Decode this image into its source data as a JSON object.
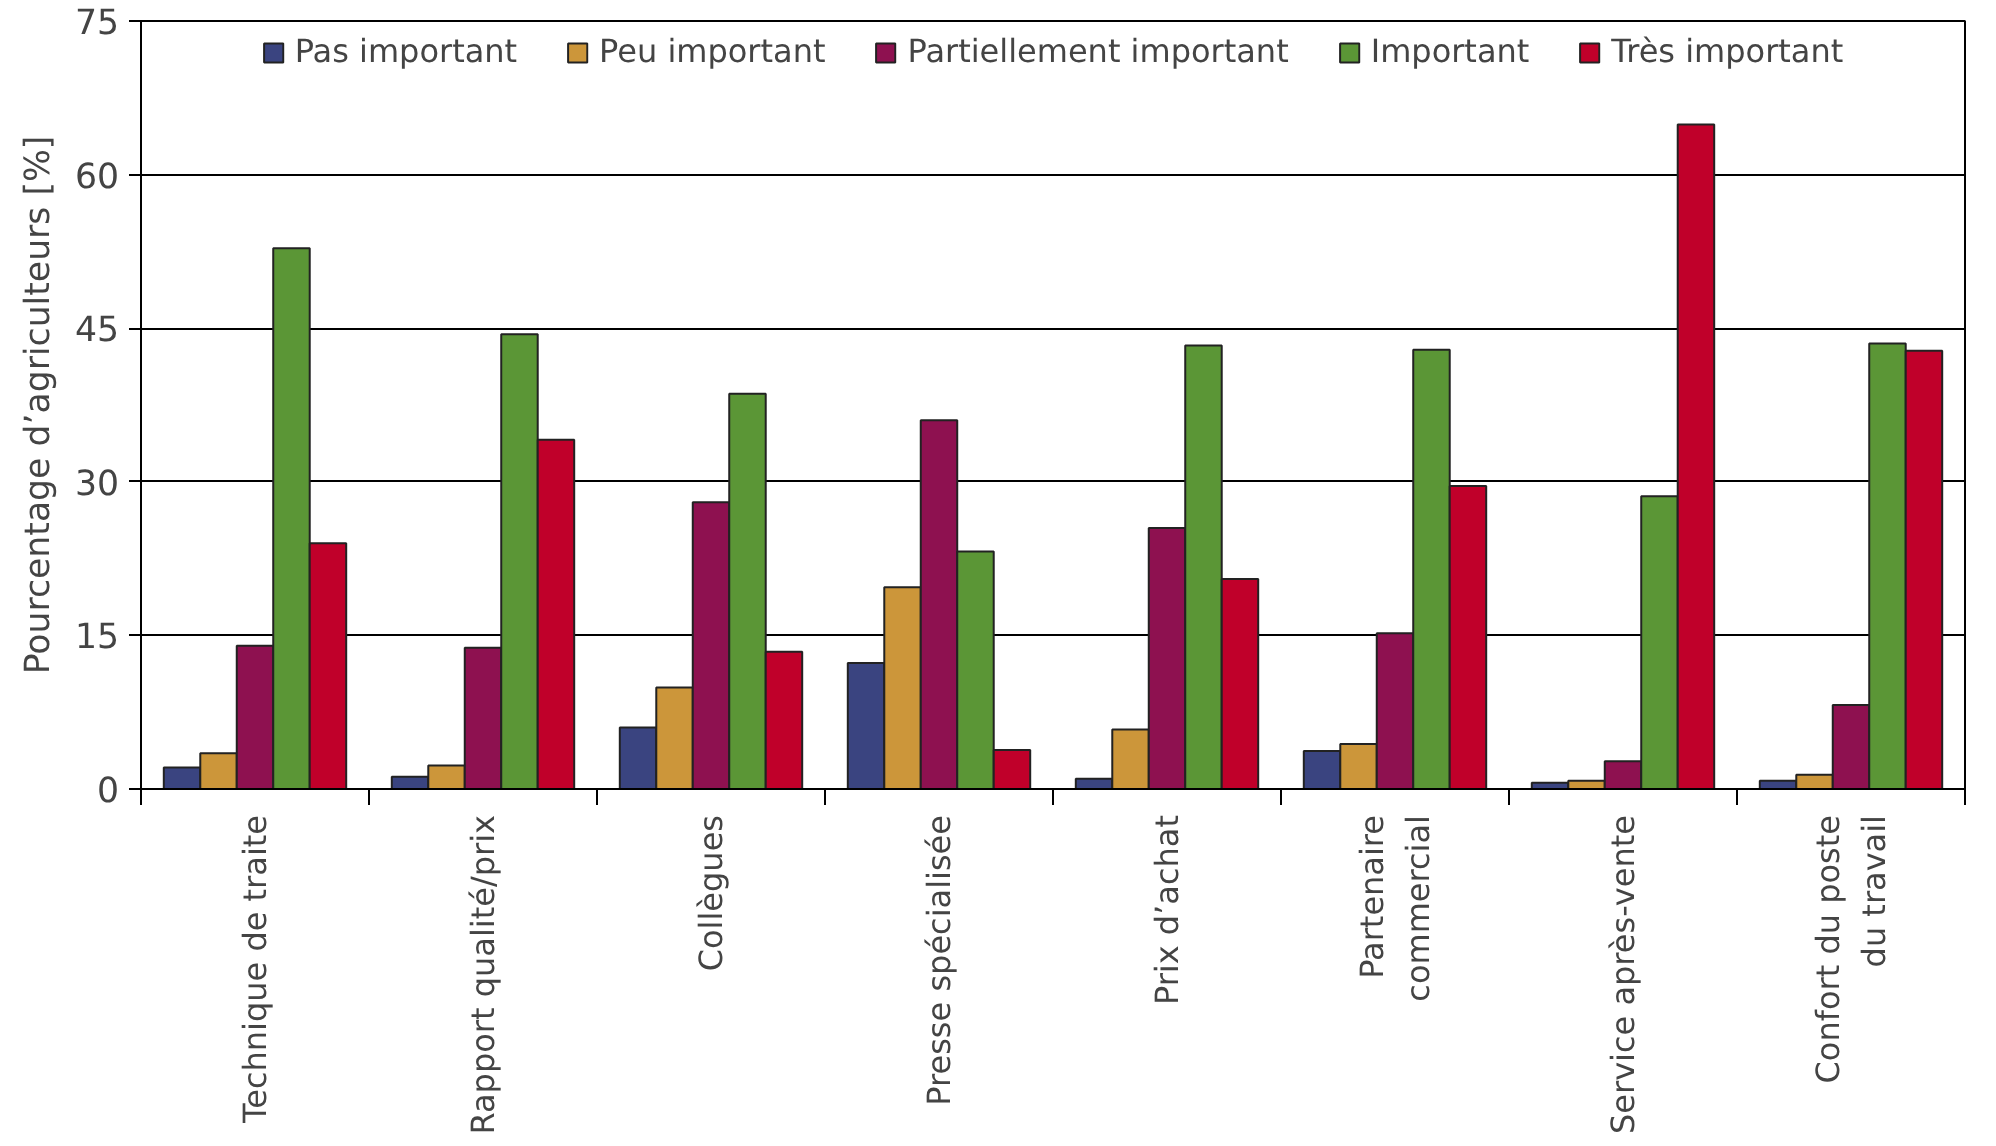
{
  "chart_data": {
    "type": "bar",
    "ylabel": "Pourcentage d’agriculteurs [%]",
    "categories": [
      "Technique de traite",
      "Rapport qualité/prix",
      "Collègues",
      "Presse spécialisée",
      "Prix d’achat",
      "Partenaire\ncommercial",
      "Service après-vente",
      "Confort du poste\ndu travail"
    ],
    "series": [
      {
        "name": "Pas important",
        "color": "#3a4480",
        "values": [
          2.1,
          1.2,
          6,
          12.3,
          1,
          3.7,
          0.6,
          0.8
        ]
      },
      {
        "name": "Peu important",
        "color": "#cc963a",
        "values": [
          3.5,
          2.3,
          9.9,
          19.7,
          5.8,
          4.4,
          0.8,
          1.4
        ]
      },
      {
        "name": "Partiellement important",
        "color": "#8e1150",
        "values": [
          14,
          13.8,
          28,
          36,
          25.5,
          15.2,
          2.7,
          8.2
        ]
      },
      {
        "name": "Important",
        "color": "#5b9636",
        "values": [
          52.8,
          44.4,
          38.6,
          23.2,
          43.3,
          42.9,
          28.6,
          43.5
        ]
      },
      {
        "name": "Très important",
        "color": "#c0002a",
        "values": [
          24,
          34.1,
          13.4,
          3.8,
          20.5,
          29.6,
          64.9,
          42.8
        ]
      }
    ],
    "ylim": [
      0,
      75
    ],
    "yticks": [
      0,
      15,
      30,
      45,
      60,
      75
    ],
    "grid": "y",
    "legend": "top"
  }
}
